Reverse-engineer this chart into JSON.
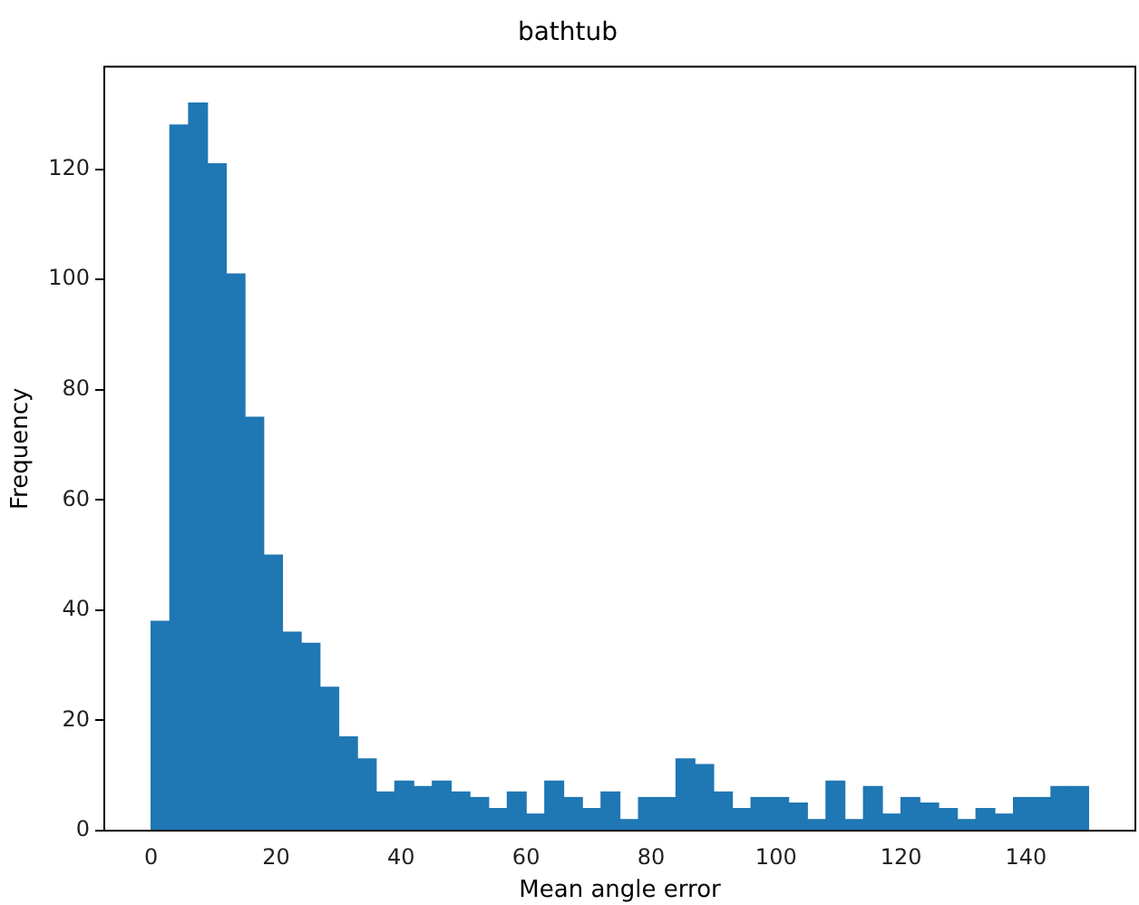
{
  "chart_data": {
    "type": "histogram",
    "title": "bathtub",
    "xlabel": "Mean angle error",
    "ylabel": "Frequency",
    "bins": [
      0,
      3,
      6,
      9,
      12,
      15,
      18,
      21,
      24,
      27,
      30,
      33,
      36,
      39,
      42,
      45,
      48,
      51,
      54,
      57,
      60,
      63,
      66,
      69,
      72,
      75,
      78,
      81,
      84,
      87,
      90,
      93,
      96,
      99,
      102,
      105,
      108,
      111,
      114,
      117,
      120,
      123,
      126,
      129,
      132,
      135,
      138,
      141,
      144,
      147,
      150
    ],
    "values": [
      38,
      128,
      132,
      121,
      101,
      75,
      50,
      36,
      34,
      26,
      17,
      13,
      7,
      9,
      8,
      9,
      7,
      6,
      4,
      7,
      3,
      9,
      6,
      4,
      7,
      2,
      6,
      6,
      13,
      12,
      7,
      4,
      6,
      6,
      5,
      2,
      9,
      2,
      8,
      3,
      6,
      5,
      4,
      2,
      4,
      3,
      6,
      6,
      8,
      8
    ],
    "color": "#1f77b4",
    "xlim": [
      -7.5,
      157.5
    ],
    "ylim": [
      0,
      138.6
    ],
    "xticks": [
      0,
      20,
      40,
      60,
      80,
      100,
      120,
      140
    ],
    "yticks": [
      0,
      20,
      40,
      60,
      80,
      100,
      120
    ],
    "grid": false,
    "legend": false
  }
}
